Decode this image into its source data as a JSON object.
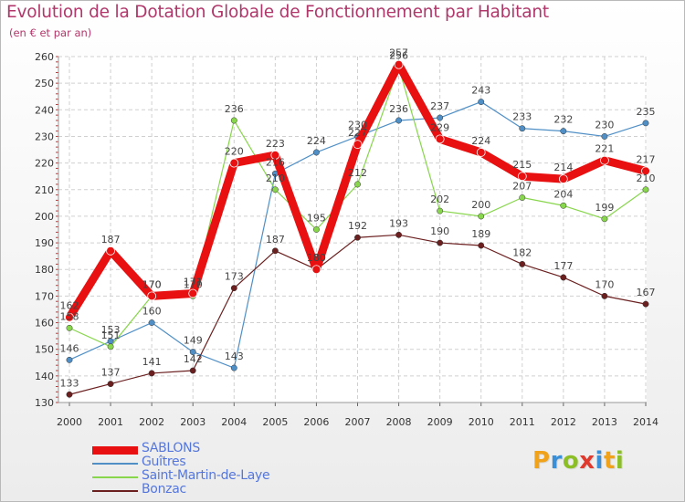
{
  "title": "Evolution de la Dotation Globale de Fonctionnement par Habitant",
  "subtitle": "(en € et par an)",
  "brand": {
    "name": "Proxiti",
    "letters": [
      {
        "ch": "P",
        "color": "#f0a21a"
      },
      {
        "ch": "r",
        "color": "#3a8fd6"
      },
      {
        "ch": "o",
        "color": "#8cbf26"
      },
      {
        "ch": "x",
        "color": "#e03a2e"
      },
      {
        "ch": "i",
        "color": "#3a8fd6"
      },
      {
        "ch": "t",
        "color": "#f0a21a"
      },
      {
        "ch": "i",
        "color": "#8cbf26"
      }
    ]
  },
  "chart_data": {
    "type": "line",
    "title": "Evolution de la Dotation Globale de Fonctionnement par Habitant",
    "subtitle": "(en € et par an)",
    "xlabel": "",
    "ylabel": "",
    "x": [
      2000,
      2001,
      2002,
      2003,
      2004,
      2005,
      2006,
      2007,
      2008,
      2009,
      2010,
      2011,
      2012,
      2013,
      2014
    ],
    "ylim": [
      130,
      260
    ],
    "yticks": [
      130,
      140,
      150,
      160,
      170,
      180,
      190,
      200,
      210,
      220,
      230,
      240,
      250,
      260
    ],
    "grid": true,
    "legend_position": "bottom-left",
    "series": [
      {
        "name": "SABLONS",
        "color": "#e81010",
        "values": [
          162,
          187,
          170,
          171,
          220,
          223,
          180,
          227,
          257,
          229,
          224,
          215,
          214,
          221,
          217
        ]
      },
      {
        "name": "Guîtres",
        "color": "#4f8fc6",
        "values": [
          146,
          153,
          160,
          149,
          143,
          216,
          224,
          230,
          236,
          237,
          243,
          233,
          232,
          230,
          235
        ]
      },
      {
        "name": "Saint-Martin-de-Laye",
        "color": "#88d64c",
        "values": [
          158,
          151,
          170,
          170,
          236,
          210,
          195,
          212,
          256,
          202,
          200,
          207,
          204,
          199,
          210
        ]
      },
      {
        "name": "Bonzac",
        "color": "#6b1f1f",
        "values": [
          133,
          137,
          141,
          142,
          173,
          187,
          180,
          192,
          193,
          190,
          189,
          182,
          177,
          170,
          167
        ]
      }
    ]
  }
}
